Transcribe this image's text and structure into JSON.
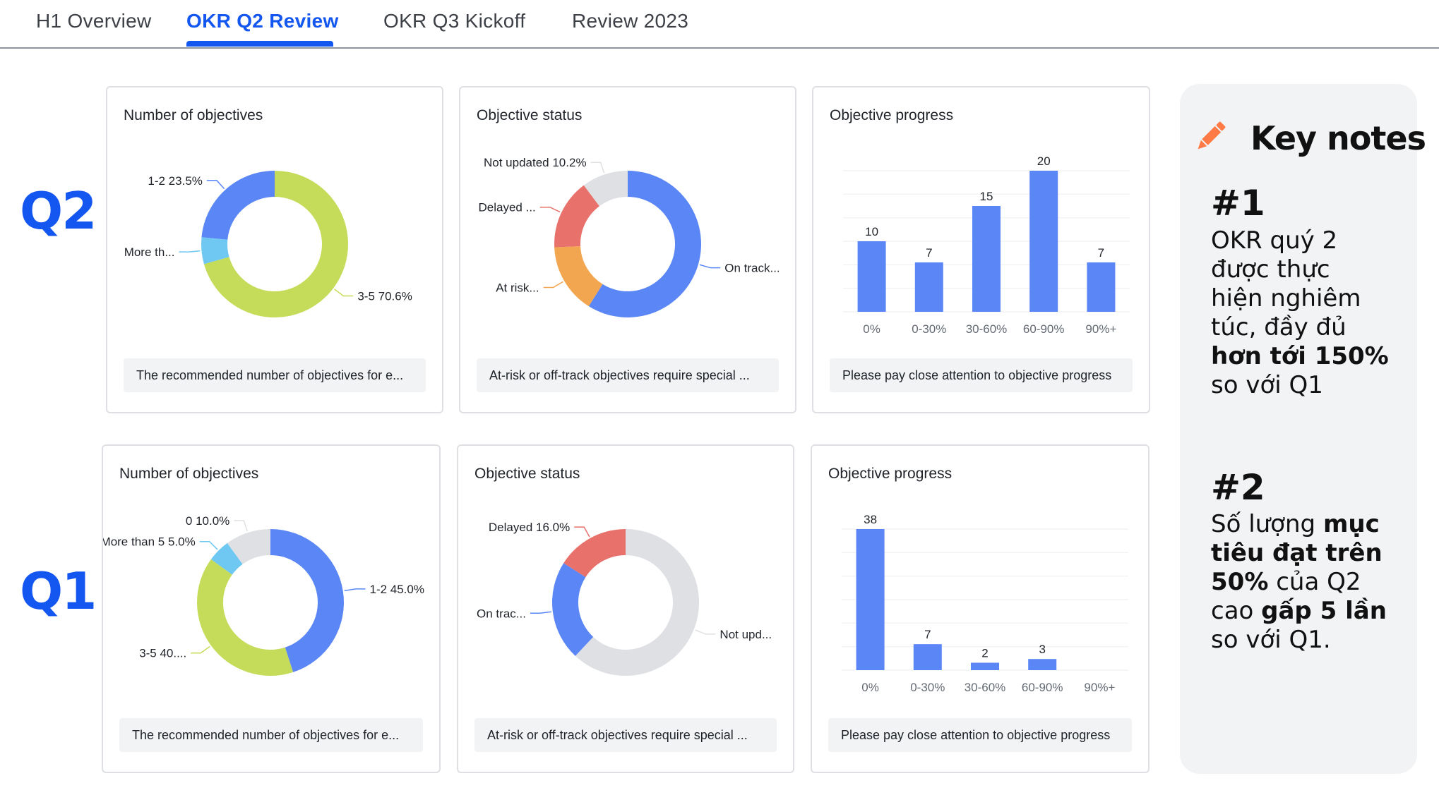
{
  "tabs": [
    {
      "label": "H1 Overview",
      "active": false
    },
    {
      "label": "OKR Q2 Review",
      "active": true
    },
    {
      "label": "OKR Q3  Kickoff",
      "active": false
    },
    {
      "label": "Review 2023",
      "active": false
    }
  ],
  "quarters": {
    "q2": "Q2",
    "q1": "Q1"
  },
  "colors": {
    "accent": "#1456f0",
    "blue": "#5b86f5",
    "green": "#c5dc5a",
    "cyan": "#6ec8f2",
    "red": "#e8716b",
    "orange": "#f2a650",
    "gray": "#dee0e3"
  },
  "cards": {
    "q2_objectives": {
      "title": "Number of objectives",
      "footer": "The recommended number of objectives for e..."
    },
    "q2_status": {
      "title": "Objective status",
      "footer": "At-risk or off-track objectives require special ..."
    },
    "q2_progress": {
      "title": "Objective progress",
      "footer": "Please pay close attention to objective progress"
    },
    "q1_objectives": {
      "title": "Number of objectives",
      "footer": "The recommended number of objectives for e..."
    },
    "q1_status": {
      "title": "Objective status",
      "footer": "At-risk or off-track objectives require special ..."
    },
    "q1_progress": {
      "title": "Objective progress",
      "footer": "Please pay close attention to objective progress"
    }
  },
  "chart_data": [
    {
      "id": "q2_objectives",
      "type": "pie",
      "title": "Number of objectives",
      "slices": [
        {
          "label": "3-5 70.6%",
          "value": 70.6,
          "color": "#c5dc5a"
        },
        {
          "label": "More th...",
          "value": 5.9,
          "color": "#6ec8f2"
        },
        {
          "label": "1-2 23.5%",
          "value": 23.5,
          "color": "#5b86f5"
        }
      ]
    },
    {
      "id": "q2_status",
      "type": "pie",
      "title": "Objective status",
      "slices": [
        {
          "label": "On track...",
          "value": 58.9,
          "color": "#5b86f5"
        },
        {
          "label": "At risk...",
          "value": 15.4,
          "color": "#f2a650"
        },
        {
          "label": "Delayed ...",
          "value": 15.5,
          "color": "#e8716b"
        },
        {
          "label": "Not updated 10.2%",
          "value": 10.2,
          "color": "#dee0e3"
        }
      ]
    },
    {
      "id": "q2_progress",
      "type": "bar",
      "title": "Objective progress",
      "categories": [
        "0%",
        "0-30%",
        "30-60%",
        "60-90%",
        "90%+"
      ],
      "values": [
        10,
        7,
        15,
        20,
        7
      ],
      "ylim": [
        0,
        20
      ],
      "grid": true
    },
    {
      "id": "q1_objectives",
      "type": "pie",
      "title": "Number of objectives",
      "slices": [
        {
          "label": "1-2 45.0%",
          "value": 45.0,
          "color": "#5b86f5"
        },
        {
          "label": "3-5 40....",
          "value": 40.0,
          "color": "#c5dc5a"
        },
        {
          "label": "More than 5 5.0%",
          "value": 5.0,
          "color": "#6ec8f2"
        },
        {
          "label": "0 10.0%",
          "value": 10.0,
          "color": "#dee0e3"
        }
      ]
    },
    {
      "id": "q1_status",
      "type": "pie",
      "title": "Objective status",
      "slices": [
        {
          "label": "Not upd...",
          "value": 62.0,
          "color": "#dee0e3"
        },
        {
          "label": "On trac...",
          "value": 22.0,
          "color": "#5b86f5"
        },
        {
          "label": "Delayed 16.0%",
          "value": 16.0,
          "color": "#e8716b"
        }
      ]
    },
    {
      "id": "q1_progress",
      "type": "bar",
      "title": "Objective progress",
      "categories": [
        "0%",
        "0-30%",
        "30-60%",
        "60-90%",
        "90%+"
      ],
      "values": [
        38,
        7,
        2,
        3,
        0
      ],
      "ylim": [
        0,
        38
      ],
      "grid": true
    }
  ],
  "notes": {
    "title": "Key notes",
    "icon": "pencil-icon",
    "n1": {
      "num": "#1",
      "l1": "OKR quý 2",
      "l2": "được thực",
      "l3": "hiện nghiêm",
      "l4": "túc, đầy đủ",
      "l5": "hơn tới 150%",
      "l6": "so với Q1"
    },
    "n2": {
      "num": "#2",
      "a1": "Số lượng ",
      "b1": "mục",
      "b2": "tiêu đạt trên",
      "b3": "50%",
      "a3": " của Q2",
      "a4": "cao ",
      "b4": "gấp 5 lần",
      "l5": "so với Q1."
    }
  }
}
